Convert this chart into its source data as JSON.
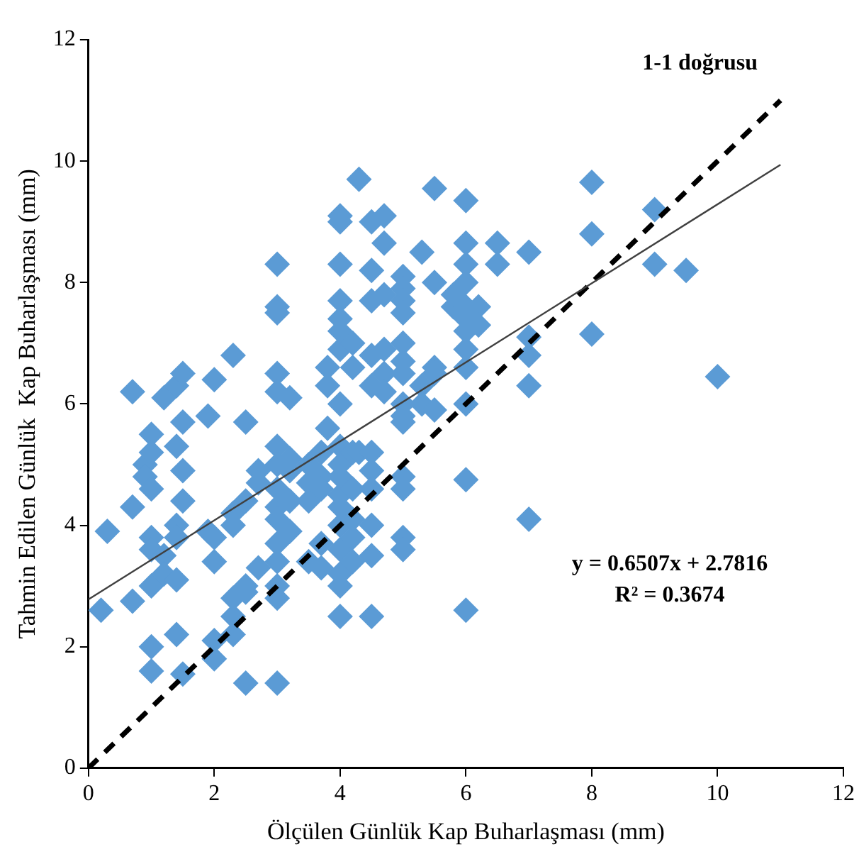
{
  "chart_data": {
    "type": "scatter",
    "xlabel": "Ölçülen Günlük Kap Buharlaşması (mm)",
    "ylabel": "Tahmin Edilen Günlük  Kap Buharlaşması (mm)",
    "xlim": [
      0,
      12
    ],
    "ylim": [
      0,
      12
    ],
    "xticks": [
      0,
      2,
      4,
      6,
      8,
      10,
      12
    ],
    "yticks": [
      0,
      2,
      4,
      6,
      8,
      10,
      12
    ],
    "grid": false,
    "legend": false,
    "series": [
      {
        "marker": "diamond",
        "color": "#5b9bd5",
        "x": [
          0.2,
          0.3,
          0.7,
          0.7,
          0.7,
          0.9,
          0.9,
          1,
          1,
          1,
          1,
          1,
          1,
          1,
          1,
          1.2,
          1.2,
          1.2,
          1.4,
          1.4,
          1.4,
          1.4,
          1.4,
          1.4,
          1.5,
          1.5,
          1.5,
          1.5,
          1.5,
          1.9,
          1.9,
          2,
          2,
          2,
          2,
          2,
          2.3,
          2.3,
          2.3,
          2.3,
          2.3,
          2.3,
          2.5,
          2.5,
          2.5,
          2.5,
          2.5,
          2.7,
          2.7,
          2.7,
          3,
          3,
          3,
          3,
          3,
          3,
          3,
          3,
          3,
          3,
          3,
          3,
          3,
          3,
          3,
          3.2,
          3.2,
          3.2,
          3.2,
          3.2,
          3.5,
          3.5,
          3.5,
          3.5,
          3.7,
          3.7,
          3.7,
          3.7,
          3.7,
          3.8,
          3.8,
          3.8,
          4,
          4,
          4,
          4,
          4,
          4,
          4,
          4,
          4,
          4,
          4,
          4,
          4,
          4,
          4,
          4,
          4,
          4,
          4.2,
          4.2,
          4.2,
          4.2,
          4.2,
          4.2,
          4.2,
          4.3,
          4.3,
          4.5,
          4.5,
          4.5,
          4.5,
          4.5,
          4.5,
          4.5,
          4.5,
          4.5,
          4.5,
          4.5,
          4.7,
          4.7,
          4.7,
          4.7,
          4.7,
          4.7,
          5,
          5,
          5,
          5,
          5,
          5,
          5,
          5,
          5,
          5,
          5,
          5,
          5,
          5,
          5.3,
          5.3,
          5.3,
          5.5,
          5.5,
          5.5,
          5.5,
          5.5,
          5.8,
          5.8,
          6,
          6,
          6,
          6,
          6,
          6,
          6,
          6,
          6,
          6,
          6,
          6,
          6.2,
          6.2,
          6.5,
          6.5,
          7,
          7,
          7,
          7,
          7,
          8,
          8,
          8,
          9,
          9,
          9.5,
          10
        ],
        "values": [
          2.6,
          3.9,
          6.2,
          4.3,
          2.75,
          5,
          4.8,
          5.5,
          5.2,
          4.6,
          3.8,
          3.6,
          3,
          2,
          1.6,
          6.1,
          3.5,
          3.2,
          6.3,
          5.3,
          4,
          3.8,
          3.1,
          2.2,
          6.5,
          5.7,
          4.9,
          4.4,
          1.55,
          5.8,
          3.9,
          6.4,
          3.8,
          3.4,
          2.1,
          1.8,
          6.8,
          4.2,
          4,
          2.8,
          2.5,
          2.2,
          5.7,
          4.4,
          3,
          2.9,
          1.4,
          4.9,
          4.7,
          3.3,
          8.3,
          7.6,
          7.5,
          6.5,
          6.2,
          5.3,
          5,
          4.6,
          4.3,
          4.1,
          3.7,
          3.4,
          3,
          2.8,
          1.4,
          6.1,
          5.1,
          4.9,
          4.4,
          3.9,
          5,
          4.7,
          4.4,
          3.4,
          5.2,
          4.8,
          4.6,
          3.7,
          3.3,
          6.6,
          6.3,
          5.6,
          9.1,
          9,
          8.3,
          7.7,
          7.4,
          7.2,
          6.9,
          6,
          5.3,
          5,
          4.8,
          4.5,
          4.3,
          4,
          3.6,
          3.2,
          3,
          2.5,
          7,
          6.6,
          5.2,
          4.6,
          4.1,
          3.8,
          3.4,
          9.7,
          5.2,
          9,
          8.2,
          7.7,
          6.8,
          6.3,
          5.2,
          4.9,
          4.6,
          4,
          3.5,
          2.5,
          9.1,
          8.65,
          7.8,
          6.9,
          6.5,
          6.2,
          8.1,
          7.9,
          7.7,
          7.5,
          7,
          6.7,
          6.5,
          6,
          5.8,
          5.7,
          4.8,
          4.6,
          3.8,
          3.6,
          8.5,
          6.3,
          6,
          9.55,
          8,
          6.6,
          6.5,
          5.9,
          7.8,
          7.6,
          9.35,
          8.65,
          8.3,
          8,
          7.6,
          7.4,
          7.2,
          6.9,
          6.6,
          6,
          4.75,
          2.6,
          7.6,
          7.3,
          8.65,
          8.3,
          8.5,
          7.1,
          6.8,
          6.3,
          4.1,
          9.65,
          8.8,
          7.15,
          9.2,
          8.3,
          8.2,
          6.45
        ]
      },
      {
        "type": "line",
        "marker": "none",
        "color": "#404040",
        "line_style": "solid",
        "x": [
          0,
          11
        ],
        "values": [
          2.78,
          9.94
        ]
      },
      {
        "type": "line",
        "marker": "none",
        "color": "#000000",
        "line_style": "dashed",
        "x": [
          0,
          11
        ],
        "values": [
          0,
          11
        ]
      }
    ],
    "annotations": [
      "1-1 doğrusu",
      "y = 0.6507x + 2.7816",
      "R² = 0.3674"
    ]
  }
}
